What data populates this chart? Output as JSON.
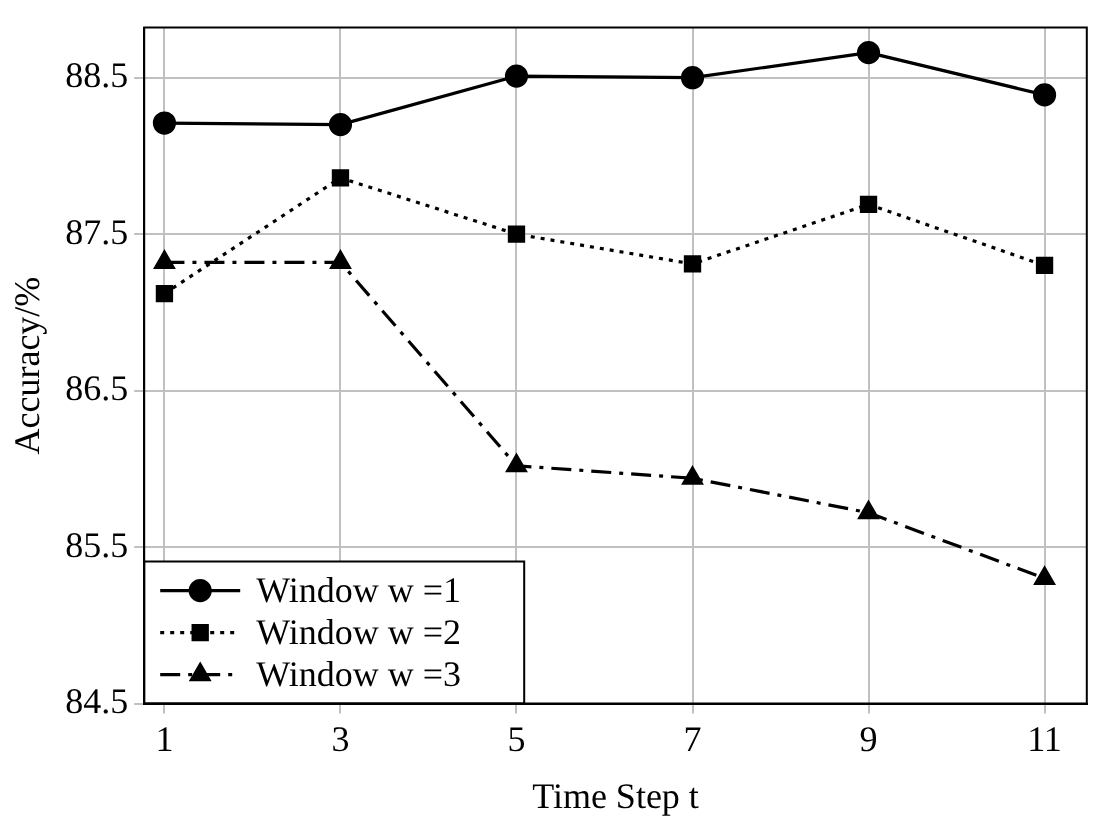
{
  "chart_data": {
    "type": "line",
    "xlabel": "Time Step t",
    "ylabel": "Accuracy/%",
    "x": [
      1,
      3,
      5,
      7,
      9,
      11
    ],
    "series": [
      {
        "name": "Window w =1",
        "color": "#000000",
        "values": [
          88.21,
          88.2,
          88.51,
          88.5,
          88.66,
          88.39
        ],
        "marker": "circle",
        "line_style": "solid"
      },
      {
        "name": "Window w =2",
        "color": "#000000",
        "values": [
          87.12,
          87.86,
          87.5,
          87.31,
          87.69,
          87.3
        ],
        "marker": "square",
        "line_style": "dotted"
      },
      {
        "name": "Window w =3",
        "color": "#000000",
        "values": [
          87.32,
          87.32,
          86.02,
          85.94,
          85.72,
          85.3
        ],
        "marker": "triangle",
        "line_style": "dashed"
      }
    ],
    "xlim": [
      0.77,
      11.48
    ],
    "xticks": [
      1,
      3,
      5,
      7,
      9,
      11
    ],
    "ylim": [
      84.5,
      88.82
    ],
    "yticks": [
      84.5,
      85.5,
      86.5,
      87.5,
      88.5
    ],
    "grid": true,
    "legend": "bottom left"
  }
}
